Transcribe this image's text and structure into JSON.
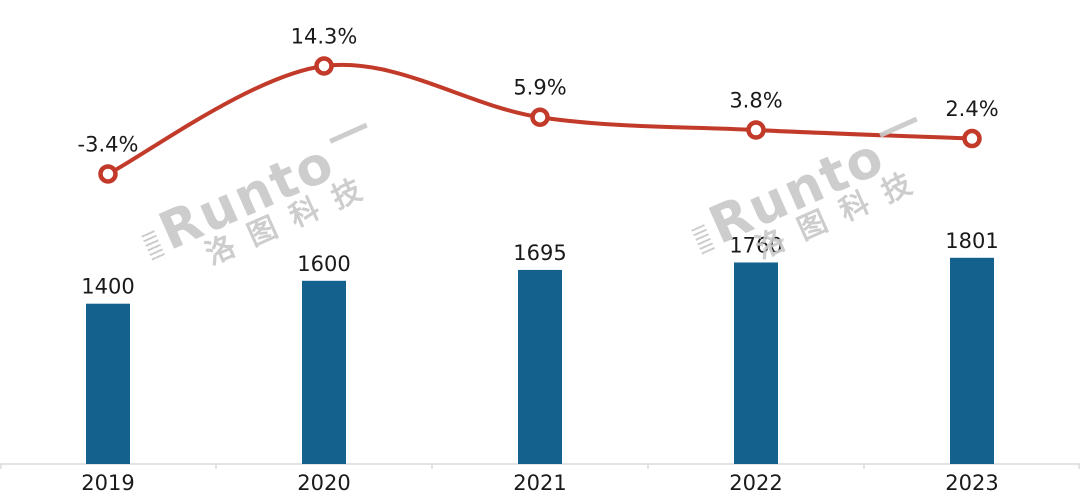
{
  "chart_data": {
    "type": "bar",
    "title": "",
    "xlabel": "",
    "ylabel": "",
    "categories": [
      "2019",
      "2020",
      "2021",
      "2022",
      "2023"
    ],
    "series": [
      {
        "type": "bar",
        "values": [
          1400,
          1600,
          1695,
          1760,
          1801
        ],
        "data_labels": [
          "1400",
          "1600",
          "1695",
          "1760",
          "1801"
        ],
        "color": "#14618e"
      },
      {
        "type": "line",
        "values": [
          -3.4,
          14.3,
          5.9,
          3.8,
          2.4
        ],
        "data_labels": [
          "-3.4%",
          "14.3%",
          "5.9%",
          "3.8%",
          "2.4%"
        ],
        "color": "#c23b2a",
        "marker": "open-circle"
      }
    ],
    "bar_axis": {
      "min": 0,
      "max": 4000,
      "visible": false
    },
    "line_axis": {
      "visible": false
    },
    "grid": false,
    "legend": "none",
    "axis_line_color": "#dadada",
    "text_color": "#1a1a1a",
    "background": "#ffffff"
  },
  "watermark": {
    "en": "Runto",
    "cn": "洛图科技"
  }
}
